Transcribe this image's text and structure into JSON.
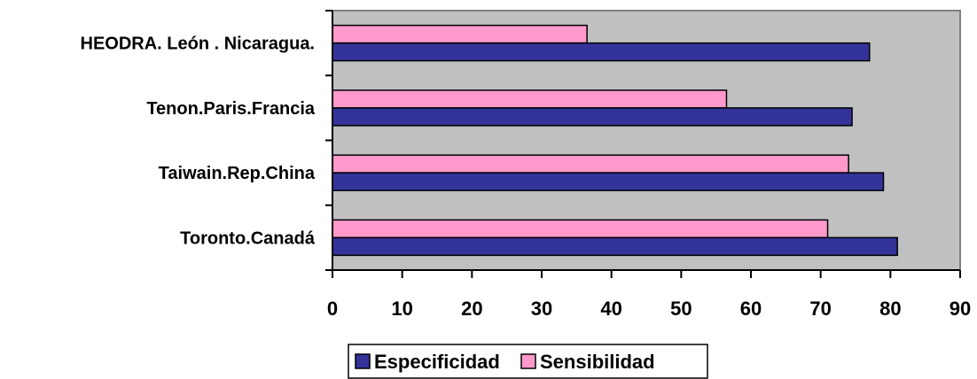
{
  "chart_data": {
    "type": "bar",
    "orientation": "horizontal",
    "categories": [
      "Toronto.Canadá",
      "Taiwain.Rep.China",
      "Tenon.Paris.Francia",
      "HEODRA. León . Nicaragua."
    ],
    "series": [
      {
        "name": "Especificidad",
        "color": "#333399",
        "values": [
          81,
          79,
          74.5,
          77
        ]
      },
      {
        "name": "Sensibilidad",
        "color": "#ff99cc",
        "values": [
          71,
          74,
          56.5,
          36.5
        ]
      }
    ],
    "xlim": [
      0,
      90
    ],
    "xticks": [
      0,
      10,
      20,
      30,
      40,
      50,
      60,
      70,
      80,
      90
    ],
    "plot_background": "#c0c0c0",
    "grid": false,
    "legend_position": "bottom"
  }
}
